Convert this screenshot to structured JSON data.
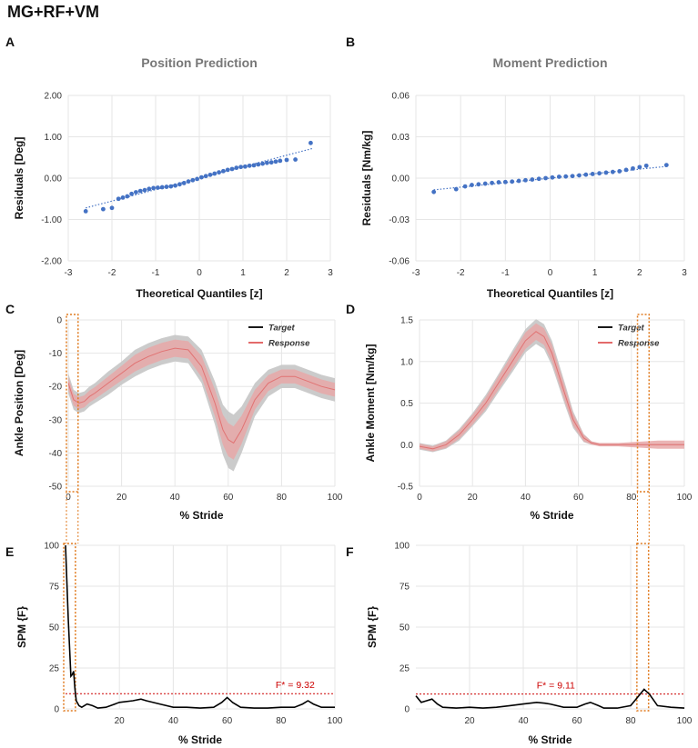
{
  "figure_title": "MG+RF+VM",
  "panel_letters": {
    "A": "A",
    "B": "B",
    "C": "C",
    "D": "D",
    "E": "E",
    "F": "F"
  },
  "colors": {
    "qq_points": "#4472C4",
    "target": "#000000",
    "response": "#E05A5A",
    "response_band": "#E8A8A8",
    "sd_band": "#C8C8C8",
    "highlight": "#E07B20",
    "threshold": "#CC0000",
    "grid": "#E6E6E6"
  },
  "chart_data": [
    {
      "id": "A",
      "type": "scatter",
      "title": "Position Prediction",
      "xlabel": "Theoretical Quantiles [z]",
      "ylabel": "Residuals [Deg]",
      "xlim": [
        -3,
        3
      ],
      "ylim": [
        -2,
        2
      ],
      "xticks": [
        "-3",
        "-2",
        "-1",
        "0",
        "1",
        "2",
        "3"
      ],
      "yticks": [
        "2.00",
        "1.00",
        "0.00",
        "-1.00",
        "-2.00"
      ],
      "trendline": {
        "x": [
          -2.6,
          2.6
        ],
        "y": [
          -0.72,
          0.72
        ]
      },
      "points_x": [
        -2.6,
        -2.2,
        -2.0,
        -1.85,
        -1.75,
        -1.65,
        -1.55,
        -1.45,
        -1.35,
        -1.25,
        -1.15,
        -1.05,
        -0.95,
        -0.85,
        -0.75,
        -0.65,
        -0.55,
        -0.45,
        -0.35,
        -0.25,
        -0.15,
        -0.05,
        0.05,
        0.15,
        0.25,
        0.35,
        0.45,
        0.55,
        0.65,
        0.75,
        0.85,
        0.95,
        1.05,
        1.15,
        1.25,
        1.35,
        1.45,
        1.55,
        1.65,
        1.75,
        1.85,
        2.0,
        2.2,
        2.55
      ],
      "points_y": [
        -0.8,
        -0.75,
        -0.72,
        -0.5,
        -0.47,
        -0.44,
        -0.38,
        -0.34,
        -0.31,
        -0.29,
        -0.26,
        -0.24,
        -0.23,
        -0.22,
        -0.21,
        -0.2,
        -0.18,
        -0.15,
        -0.12,
        -0.08,
        -0.05,
        -0.02,
        0.02,
        0.05,
        0.08,
        0.11,
        0.14,
        0.17,
        0.2,
        0.22,
        0.25,
        0.27,
        0.28,
        0.3,
        0.31,
        0.33,
        0.35,
        0.37,
        0.38,
        0.4,
        0.42,
        0.44,
        0.45,
        0.85
      ]
    },
    {
      "id": "B",
      "type": "scatter",
      "title": "Moment Prediction",
      "xlabel": "Theoretical Quantiles [z]",
      "ylabel": "Residuals [Nm/kg]",
      "xlim": [
        -3,
        3
      ],
      "ylim": [
        -0.06,
        0.06
      ],
      "xticks": [
        "-3",
        "-2",
        "-1",
        "0",
        "1",
        "2",
        "3"
      ],
      "yticks": [
        "0.06",
        "0.03",
        "0.00",
        "-0.03",
        "-0.06"
      ],
      "trendline": {
        "x": [
          -2.6,
          2.6
        ],
        "y": [
          -0.0085,
          0.0085
        ]
      },
      "points_x": [
        -2.6,
        -2.1,
        -1.9,
        -1.75,
        -1.6,
        -1.45,
        -1.3,
        -1.15,
        -1.0,
        -0.85,
        -0.7,
        -0.55,
        -0.4,
        -0.25,
        -0.1,
        0.05,
        0.2,
        0.35,
        0.5,
        0.65,
        0.8,
        0.95,
        1.1,
        1.25,
        1.4,
        1.55,
        1.7,
        1.85,
        2.0,
        2.15,
        2.6
      ],
      "points_y": [
        -0.01,
        -0.008,
        -0.006,
        -0.005,
        -0.0045,
        -0.004,
        -0.0035,
        -0.003,
        -0.0028,
        -0.0025,
        -0.002,
        -0.0015,
        -0.001,
        -0.0005,
        0.0,
        0.0005,
        0.001,
        0.0012,
        0.0015,
        0.002,
        0.0025,
        0.003,
        0.0035,
        0.004,
        0.0045,
        0.005,
        0.006,
        0.007,
        0.008,
        0.009,
        0.0095
      ]
    },
    {
      "id": "C",
      "type": "line",
      "xlabel": "% Stride",
      "ylabel": "Ankle Position [Deg]",
      "xlim": [
        0,
        100
      ],
      "ylim": [
        -50,
        0
      ],
      "xticks": [
        "0",
        "20",
        "40",
        "60",
        "80",
        "100"
      ],
      "yticks": [
        "0",
        "-10",
        "-20",
        "-30",
        "-40",
        "-50"
      ],
      "legend": [
        "Target",
        "Response"
      ],
      "legend_position": "top-right",
      "highlight_range": [
        0,
        3
      ],
      "x": [
        0,
        2,
        4,
        6,
        8,
        10,
        15,
        20,
        25,
        30,
        35,
        40,
        45,
        50,
        55,
        58,
        60,
        62,
        65,
        70,
        75,
        80,
        85,
        90,
        95,
        100
      ],
      "mean": [
        -19,
        -24,
        -25,
        -24.5,
        -23,
        -22,
        -19,
        -16,
        -13,
        -11,
        -9.5,
        -8.5,
        -9,
        -14,
        -25,
        -33,
        -36,
        -37,
        -33,
        -24,
        -19,
        -17,
        -17,
        -18.5,
        -20,
        -21
      ],
      "sd": [
        3,
        3,
        3,
        3,
        3,
        3,
        3.5,
        3.5,
        4,
        4,
        4,
        4,
        4,
        5,
        6.5,
        7.5,
        8.5,
        8.5,
        7,
        5,
        4,
        3.5,
        3.5,
        3.5,
        3.5,
        3.5
      ],
      "response_sd": [
        1.8,
        1.8,
        1.8,
        1.8,
        1.8,
        1.8,
        2,
        2.2,
        2.5,
        2.6,
        2.6,
        2.6,
        2.6,
        3.2,
        4,
        4.5,
        5,
        5,
        4.2,
        3,
        2.4,
        2.1,
        2.1,
        2.1,
        2.1,
        2.1
      ]
    },
    {
      "id": "D",
      "type": "line",
      "xlabel": "% Stride",
      "ylabel": "Ankle Moment [Nm/kg]",
      "xlim": [
        0,
        100
      ],
      "ylim": [
        -0.5,
        1.5
      ],
      "xticks": [
        "0",
        "20",
        "40",
        "60",
        "80",
        "100"
      ],
      "yticks": [
        "1.5",
        "1.0",
        "0.5",
        "0.0",
        "-0.5"
      ],
      "legend": [
        "Target",
        "Response"
      ],
      "legend_position": "top-right",
      "highlight_range": [
        83,
        86
      ],
      "x": [
        0,
        5,
        10,
        15,
        20,
        25,
        30,
        35,
        40,
        44,
        47,
        50,
        55,
        58,
        62,
        65,
        68,
        70,
        75,
        80,
        85,
        90,
        95,
        100
      ],
      "mean": [
        -0.02,
        -0.05,
        0.0,
        0.12,
        0.3,
        0.5,
        0.75,
        1.0,
        1.25,
        1.36,
        1.3,
        1.1,
        0.6,
        0.3,
        0.08,
        0.02,
        0.0,
        0.0,
        0.0,
        0.0,
        0.0,
        0.0,
        0.0,
        0.0
      ],
      "sd": [
        0.04,
        0.04,
        0.05,
        0.07,
        0.08,
        0.1,
        0.11,
        0.13,
        0.14,
        0.15,
        0.15,
        0.15,
        0.13,
        0.1,
        0.05,
        0.02,
        0.01,
        0.01,
        0.01,
        0.01,
        0.01,
        0.01,
        0.01,
        0.01
      ],
      "response_sd": [
        0.03,
        0.03,
        0.04,
        0.05,
        0.06,
        0.07,
        0.08,
        0.09,
        0.1,
        0.1,
        0.1,
        0.1,
        0.09,
        0.07,
        0.04,
        0.02,
        0.02,
        0.02,
        0.02,
        0.03,
        0.04,
        0.05,
        0.05,
        0.05
      ]
    },
    {
      "id": "E",
      "type": "line",
      "xlabel": "% Stride",
      "ylabel": "SPM {F}",
      "xlim": [
        0,
        100
      ],
      "ylim": [
        0,
        100
      ],
      "xticks": [
        "20",
        "40",
        "60",
        "80",
        "100"
      ],
      "yticks": [
        "100",
        "75",
        "50",
        "25",
        "0"
      ],
      "threshold": 9.32,
      "threshold_label": "F* = 9.32",
      "highlight_range": [
        0,
        3
      ],
      "x": [
        0,
        1,
        2,
        2.5,
        3,
        3.5,
        4,
        5,
        6,
        7,
        8,
        10,
        12,
        15,
        20,
        25,
        28,
        30,
        35,
        40,
        45,
        50,
        55,
        58,
        60,
        62,
        65,
        70,
        75,
        80,
        85,
        88,
        90,
        92,
        95,
        100
      ],
      "values": [
        100,
        55,
        20,
        21,
        23,
        12,
        5,
        2,
        1,
        2,
        3,
        2,
        0.5,
        1,
        4,
        5,
        6,
        5,
        3,
        1,
        1,
        0.5,
        1,
        4,
        7,
        4,
        1,
        0.5,
        0.5,
        1,
        1,
        3,
        5,
        3,
        1,
        1
      ]
    },
    {
      "id": "F",
      "type": "line",
      "xlabel": "% Stride",
      "ylabel": "SPM {F}",
      "xlim": [
        0,
        100
      ],
      "ylim": [
        0,
        100
      ],
      "xticks": [
        "20",
        "40",
        "60",
        "80",
        "100"
      ],
      "yticks": [
        "100",
        "75",
        "50",
        "25",
        "0"
      ],
      "threshold": 9.11,
      "threshold_label": "F* = 9.11",
      "highlight_range": [
        83,
        86
      ],
      "x": [
        0,
        2,
        4,
        6,
        8,
        10,
        15,
        20,
        25,
        30,
        35,
        40,
        45,
        48,
        50,
        55,
        60,
        63,
        65,
        68,
        70,
        75,
        80,
        83,
        85,
        87,
        90,
        95,
        100
      ],
      "values": [
        8,
        4,
        5,
        6,
        3,
        1,
        0.5,
        1,
        0.5,
        1,
        2,
        3,
        4,
        3.5,
        3,
        1,
        1,
        3,
        4,
        2,
        0.5,
        0.5,
        2,
        8,
        12,
        9,
        2,
        1,
        0.5
      ]
    }
  ]
}
